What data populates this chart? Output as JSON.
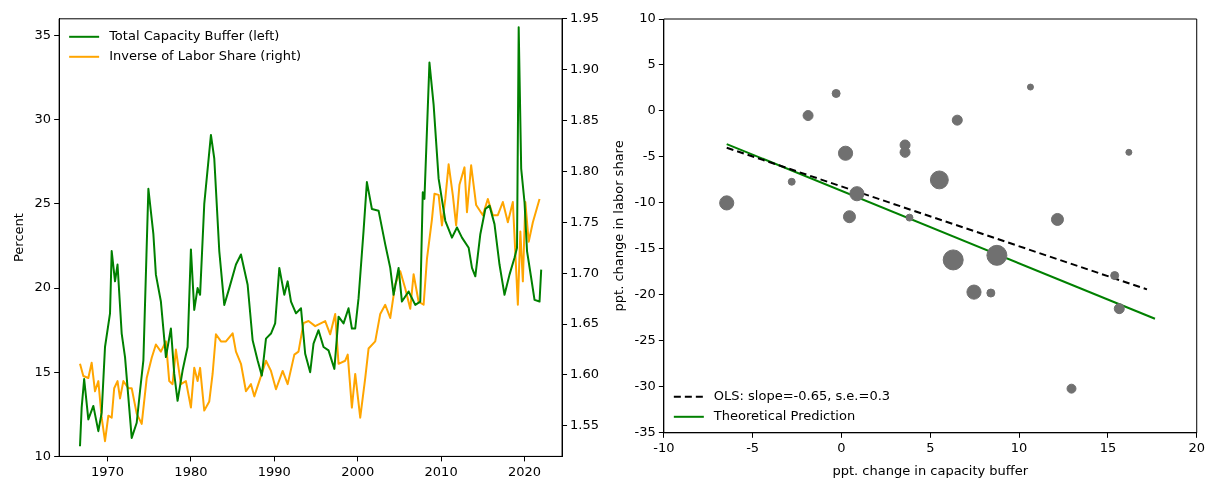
{
  "chart_data": [
    {
      "type": "line",
      "ylabel": "Percent",
      "xlim": [
        1964.2,
        2024.5
      ],
      "xticks": [
        1970,
        1980,
        1990,
        2000,
        2010,
        2020
      ],
      "ylim": [
        10,
        36
      ],
      "yticks": [
        10,
        15,
        20,
        25,
        30,
        35
      ],
      "y2lim": [
        1.52,
        1.95
      ],
      "y2ticks": [
        1.55,
        {
          "value": 1.6,
          "label": "1.60"
        },
        1.65,
        {
          "value": 1.7,
          "label": "1.70"
        },
        1.75,
        {
          "value": 1.8,
          "label": "1.80"
        },
        1.85,
        {
          "value": 1.9,
          "label": "1.90"
        },
        1.95
      ],
      "grid": false,
      "legend": "top left",
      "marker": "none",
      "series": [
        {
          "name": "Total Capacity Buffer (left)",
          "color": "#008000",
          "axis": "y",
          "x": [
            1966.7,
            1966.9,
            1967.2,
            1967.7,
            1968.3,
            1968.9,
            1969.3,
            1969.7,
            1970.3,
            1970.5,
            1970.9,
            1971.2,
            1971.7,
            1972.1,
            1972.9,
            1973.5,
            1973.9,
            1974.3,
            1974.9,
            1975.5,
            1975.8,
            1976.4,
            1977.0,
            1977.6,
            1978.0,
            1978.4,
            1979.0,
            1979.6,
            1980.0,
            1980.4,
            1980.8,
            1981.1,
            1981.6,
            1982.4,
            1982.8,
            1983.4,
            1984.0,
            1984.6,
            1985.4,
            1986.0,
            1986.8,
            1987.4,
            1988.0,
            1988.5,
            1989.0,
            1989.6,
            1990.1,
            1990.6,
            1991.2,
            1991.6,
            1992.0,
            1992.6,
            1993.2,
            1993.7,
            1994.3,
            1994.7,
            1995.3,
            1995.9,
            1996.5,
            1997.2,
            1997.7,
            1998.3,
            1998.9,
            1999.3,
            1999.7,
            2000.1,
            2000.7,
            2001.1,
            2001.7,
            2002.5,
            2003.3,
            2003.9,
            2004.3,
            2004.9,
            2005.3,
            2006.1,
            2006.9,
            2007.5,
            2007.8,
            2008.0,
            2008.6,
            2009.1,
            2009.7,
            2010.5,
            2011.3,
            2011.9,
            2012.5,
            2013.3,
            2013.7,
            2014.1,
            2014.7,
            2015.3,
            2015.8,
            2016.4,
            2017.0,
            2017.6,
            2018.2,
            2018.8,
            2019.1,
            2019.3,
            2019.6,
            2020.0,
            2020.3,
            2020.8,
            2021.2,
            2021.8,
            2022.0
          ],
          "values": [
            10.6,
            12.9,
            14.6,
            12.2,
            13.0,
            11.5,
            12.6,
            16.5,
            18.5,
            22.2,
            20.4,
            21.4,
            17.3,
            15.9,
            11.1,
            12.0,
            13.9,
            15.7,
            25.9,
            23.2,
            20.8,
            19.2,
            15.9,
            17.6,
            14.9,
            13.3,
            15.1,
            16.5,
            22.3,
            18.7,
            20.0,
            19.6,
            25.0,
            29.1,
            27.7,
            22.2,
            19.0,
            20.0,
            21.4,
            22.0,
            20.2,
            16.9,
            15.7,
            14.8,
            17.0,
            17.3,
            17.9,
            21.2,
            19.6,
            20.4,
            19.2,
            18.5,
            18.8,
            16.1,
            15.0,
            16.7,
            17.5,
            16.5,
            16.3,
            15.2,
            18.3,
            17.9,
            18.8,
            17.6,
            17.6,
            19.4,
            23.4,
            26.3,
            24.7,
            24.6,
            22.6,
            21.2,
            19.6,
            21.2,
            19.2,
            19.8,
            19.0,
            19.2,
            25.7,
            25.3,
            33.4,
            30.9,
            26.5,
            24.0,
            23.0,
            23.6,
            23.0,
            22.4,
            21.2,
            20.7,
            23.2,
            24.7,
            24.9,
            23.8,
            21.4,
            19.6,
            20.8,
            21.8,
            22.4,
            35.5,
            27.1,
            25.1,
            22.2,
            20.6,
            19.3,
            19.2,
            21.1
          ]
        },
        {
          "name": "Inverse of Labor Share (right)",
          "color": "#ffa500",
          "axis": "y2",
          "x": [
            1966.7,
            1967.1,
            1967.7,
            1968.1,
            1968.5,
            1968.9,
            1969.3,
            1969.7,
            1970.1,
            1970.5,
            1970.8,
            1971.2,
            1971.5,
            1971.9,
            1972.5,
            1972.9,
            1973.5,
            1974.1,
            1974.7,
            1975.3,
            1975.8,
            1976.4,
            1977.0,
            1977.4,
            1977.8,
            1978.2,
            1978.8,
            1979.4,
            1980.0,
            1980.4,
            1980.8,
            1981.1,
            1981.6,
            1982.2,
            1982.6,
            1983.0,
            1983.6,
            1984.2,
            1985.0,
            1985.4,
            1986.0,
            1986.6,
            1987.2,
            1987.6,
            1988.2,
            1989.0,
            1989.6,
            1990.2,
            1991.0,
            1991.6,
            1992.4,
            1992.9,
            1993.5,
            1994.1,
            1994.9,
            1996.1,
            1996.7,
            1997.3,
            1997.7,
            1998.5,
            1998.8,
            1999.3,
            1999.7,
            2000.3,
            2000.9,
            2001.3,
            2002.1,
            2002.7,
            2003.3,
            2003.9,
            2004.5,
            2005.1,
            2005.7,
            2006.3,
            2006.7,
            2007.3,
            2007.9,
            2008.3,
            2008.9,
            2009.2,
            2009.7,
            2010.1,
            2010.5,
            2010.9,
            2011.4,
            2011.8,
            2012.2,
            2012.8,
            2013.1,
            2013.6,
            2014.2,
            2015.0,
            2015.6,
            2016.2,
            2016.8,
            2017.4,
            2018.0,
            2018.6,
            2019.2,
            2019.5,
            2019.8,
            2020.1,
            2020.5,
            2021.0,
            2021.8
          ],
          "values": [
            1.611,
            1.599,
            1.597,
            1.612,
            1.584,
            1.594,
            1.558,
            1.535,
            1.56,
            1.558,
            1.587,
            1.594,
            1.577,
            1.594,
            1.587,
            1.587,
            1.562,
            1.552,
            1.597,
            1.617,
            1.63,
            1.623,
            1.633,
            1.594,
            1.591,
            1.625,
            1.591,
            1.594,
            1.568,
            1.607,
            1.594,
            1.607,
            1.565,
            1.574,
            1.601,
            1.64,
            1.633,
            1.633,
            1.641,
            1.623,
            1.611,
            1.584,
            1.591,
            1.579,
            1.594,
            1.614,
            1.604,
            1.586,
            1.604,
            1.591,
            1.62,
            1.623,
            1.651,
            1.653,
            1.648,
            1.653,
            1.64,
            1.66,
            1.611,
            1.614,
            1.62,
            1.568,
            1.601,
            1.558,
            1.597,
            1.626,
            1.633,
            1.66,
            1.669,
            1.656,
            1.689,
            1.702,
            1.685,
            1.665,
            1.699,
            1.672,
            1.669,
            1.714,
            1.753,
            1.778,
            1.777,
            1.747,
            1.773,
            1.807,
            1.777,
            1.747,
            1.787,
            1.804,
            1.76,
            1.806,
            1.767,
            1.757,
            1.773,
            1.757,
            1.757,
            1.77,
            1.75,
            1.77,
            1.669,
            1.741,
            1.692,
            1.77,
            1.731,
            1.75,
            1.773
          ]
        }
      ]
    },
    {
      "type": "bubble",
      "xlabel": "ppt. change in capacity buffer",
      "ylabel": "ppt. change in labor share",
      "xlim": [
        -10,
        20
      ],
      "xticks": [
        -10,
        -5,
        0,
        5,
        10,
        15,
        20
      ],
      "ylim": [
        -35,
        10
      ],
      "yticks": [
        -35,
        -30,
        -25,
        -20,
        -15,
        -10,
        -5,
        0,
        5,
        10
      ],
      "grid": false,
      "legend": "bottom left",
      "series": [
        {
          "type": "bubble",
          "color": "#707070",
          "x": [
            -6.46,
            -2.8,
            -1.88,
            -0.3,
            0.23,
            0.87,
            0.45,
            3.58,
            3.58,
            3.83,
            6.52,
            10.64,
            16.18,
            5.51,
            12.16,
            6.29,
            8.75,
            7.46,
            8.41,
            15.38,
            15.64,
            12.95
          ],
          "values": [
            -10.0,
            -7.7,
            -0.5,
            1.9,
            -4.6,
            -9.0,
            -11.5,
            -3.7,
            -4.5,
            -11.6,
            -1.0,
            2.6,
            -4.5,
            -7.5,
            -11.8,
            -16.2,
            -15.7,
            -19.7,
            -19.8,
            -17.9,
            -21.5,
            -30.2
          ],
          "sizes": [
            0.5,
            0.12,
            0.25,
            0.16,
            0.5,
            0.5,
            0.36,
            0.25,
            0.25,
            0.12,
            0.25,
            0.09,
            0.09,
            0.8,
            0.36,
            1,
            1,
            0.5,
            0.16,
            0.16,
            0.25,
            0.2
          ]
        },
        {
          "type": "line",
          "name": "OLS: slope=-0.65, s.e.=0.3",
          "color": "#000000",
          "line_style": "dashed",
          "marker": "none",
          "x": [
            -6.46,
            17.2
          ],
          "values": [
            -4.0,
            -19.4
          ]
        },
        {
          "type": "line",
          "name": "Theoretical Prediction",
          "color": "#008000",
          "line_style": "solid",
          "marker": "none",
          "x": [
            -6.46,
            17.65
          ],
          "values": [
            -3.6,
            -22.6
          ]
        }
      ]
    }
  ]
}
